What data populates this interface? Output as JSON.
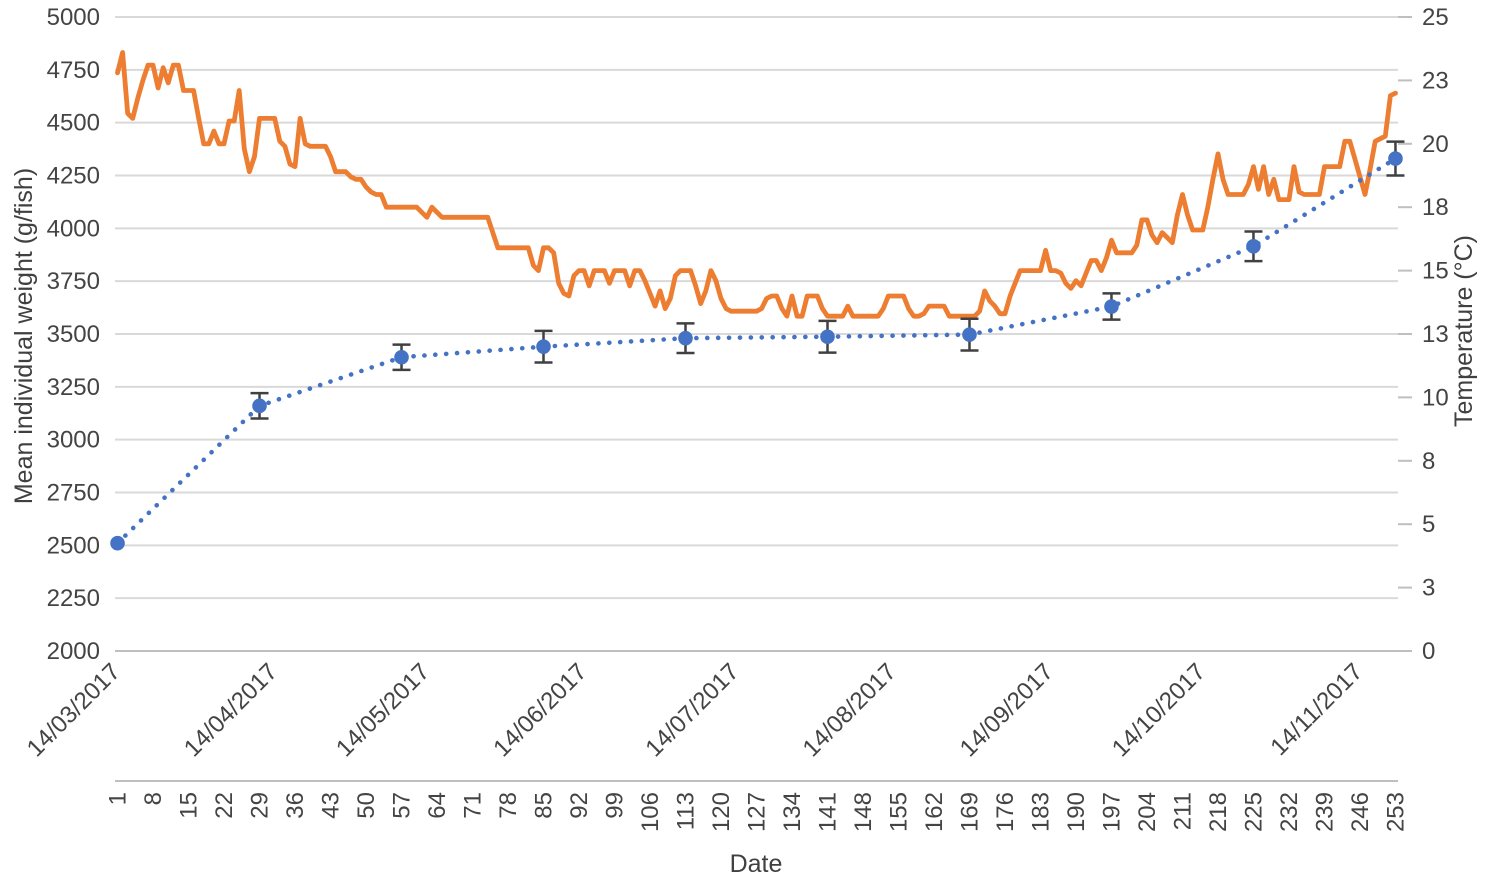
{
  "chart_data": {
    "type": "line",
    "title": "",
    "xlabel": "Date",
    "ylabel_left": "Mean individual weight (g/fish)",
    "ylabel_right": "Temperature (°C)",
    "grid": true,
    "legend": "none",
    "colors": {
      "temperature_line": "#ED7D31",
      "weight_series": "#4472C4",
      "error_bar": "#404040",
      "gridline": "#D9D9D9",
      "axis_line": "#BFBFBF",
      "tick_text": "#444444"
    },
    "y_left_axis": {
      "min": 2000,
      "max": 5000,
      "step": 250,
      "tick_labels": [
        "5000",
        "4750",
        "4500",
        "4250",
        "4000",
        "3750",
        "3500",
        "3250",
        "3000",
        "2750",
        "2500",
        "2250",
        "2000"
      ],
      "tick_values": [
        5000,
        4750,
        4500,
        4250,
        4000,
        3750,
        3500,
        3250,
        3000,
        2750,
        2500,
        2250,
        2000
      ]
    },
    "y_right_axis": {
      "min": 0,
      "max": 25,
      "step": 2.5,
      "tick_labels_bottom_to_top": [
        "0",
        "3",
        "5",
        "8",
        "10",
        "13",
        "15",
        "18",
        "20",
        "23",
        "25"
      ]
    },
    "x_axis": {
      "day_tick_labels": [
        1,
        8,
        15,
        22,
        29,
        36,
        43,
        50,
        57,
        64,
        71,
        78,
        85,
        92,
        99,
        106,
        113,
        120,
        127,
        134,
        141,
        148,
        155,
        162,
        169,
        176,
        183,
        190,
        197,
        204,
        211,
        218,
        225,
        232,
        239,
        246,
        253
      ],
      "date_group_labels": [
        {
          "label": "14/03/2017",
          "start_day": 1
        },
        {
          "label": "14/04/2017",
          "start_day": 32
        },
        {
          "label": "14/05/2017",
          "start_day": 62
        },
        {
          "label": "14/06/2017",
          "start_day": 93
        },
        {
          "label": "14/07/2017",
          "start_day": 123
        },
        {
          "label": "14/08/2017",
          "start_day": 154
        },
        {
          "label": "14/09/2017",
          "start_day": 185
        },
        {
          "label": "14/10/2017",
          "start_day": 215
        },
        {
          "label": "14/11/2017",
          "start_day": 246
        }
      ],
      "total_days": 253
    },
    "series": [
      {
        "name": "temperature",
        "axis": "right",
        "style": "solid",
        "start_day": 1,
        "values": [
          22.8,
          23.6,
          21.2,
          21.0,
          21.8,
          22.5,
          23.1,
          23.1,
          22.2,
          23.0,
          22.4,
          23.1,
          23.1,
          22.1,
          22.1,
          22.1,
          21.0,
          20.0,
          20.0,
          20.5,
          20.0,
          20.0,
          20.9,
          20.9,
          22.1,
          19.8,
          18.9,
          19.5,
          21.0,
          21.0,
          21.0,
          21.0,
          20.1,
          19.9,
          19.2,
          19.1,
          21.0,
          20.0,
          19.9,
          19.9,
          19.9,
          19.9,
          19.5,
          18.9,
          18.9,
          18.9,
          18.7,
          18.6,
          18.6,
          18.3,
          18.1,
          18.0,
          18.0,
          17.5,
          17.5,
          17.5,
          17.5,
          17.5,
          17.5,
          17.5,
          17.3,
          17.1,
          17.5,
          17.3,
          17.1,
          17.1,
          17.1,
          17.1,
          17.1,
          17.1,
          17.1,
          17.1,
          17.1,
          17.1,
          16.5,
          15.9,
          15.9,
          15.9,
          15.9,
          15.9,
          15.9,
          15.9,
          15.2,
          15.0,
          15.9,
          15.9,
          15.7,
          14.5,
          14.1,
          14.0,
          14.8,
          15.0,
          15.0,
          14.4,
          15.0,
          15.0,
          15.0,
          14.5,
          15.0,
          15.0,
          15.0,
          14.4,
          15.0,
          15.0,
          14.6,
          14.1,
          13.6,
          14.2,
          13.5,
          13.9,
          14.8,
          15.0,
          15.0,
          15.0,
          14.4,
          13.7,
          14.2,
          15.0,
          14.6,
          13.9,
          13.5,
          13.4,
          13.4,
          13.4,
          13.4,
          13.4,
          13.4,
          13.5,
          13.9,
          14.0,
          14.0,
          13.5,
          13.2,
          14.0,
          13.2,
          13.2,
          14.0,
          14.0,
          14.0,
          13.5,
          13.2,
          13.2,
          13.2,
          13.2,
          13.6,
          13.2,
          13.2,
          13.2,
          13.2,
          13.2,
          13.2,
          13.5,
          14.0,
          14.0,
          14.0,
          14.0,
          13.5,
          13.2,
          13.2,
          13.3,
          13.6,
          13.6,
          13.6,
          13.6,
          13.2,
          13.2,
          13.2,
          13.2,
          13.2,
          13.2,
          13.4,
          14.2,
          13.8,
          13.6,
          13.3,
          13.3,
          14.0,
          14.5,
          15.0,
          15.0,
          15.0,
          15.0,
          15.0,
          15.8,
          15.0,
          15.0,
          14.9,
          14.5,
          14.3,
          14.6,
          14.4,
          14.9,
          15.4,
          15.4,
          15.0,
          15.5,
          16.2,
          15.7,
          15.7,
          15.7,
          15.7,
          16.0,
          17.0,
          17.0,
          16.4,
          16.1,
          16.5,
          16.3,
          16.1,
          17.2,
          18.0,
          17.2,
          16.6,
          16.6,
          16.6,
          17.5,
          18.6,
          19.6,
          18.6,
          18.0,
          18.0,
          18.0,
          18.0,
          18.4,
          19.1,
          18.2,
          19.1,
          18.0,
          18.6,
          17.8,
          17.8,
          17.8,
          19.1,
          18.1,
          18.0,
          18.0,
          18.0,
          18.0,
          19.1,
          19.1,
          19.1,
          19.1,
          20.1,
          20.1,
          19.4,
          18.7,
          18.0,
          19.0,
          20.1,
          20.2,
          20.3,
          21.9,
          22.0
        ]
      },
      {
        "name": "mean-individual-weight",
        "axis": "left",
        "style": "dotted-with-markers",
        "points": [
          {
            "day": 1,
            "value": 2510,
            "error": 0
          },
          {
            "day": 29,
            "value": 3160,
            "error": 60
          },
          {
            "day": 57,
            "value": 3390,
            "error": 60
          },
          {
            "day": 85,
            "value": 3440,
            "error": 75
          },
          {
            "day": 113,
            "value": 3480,
            "error": 70
          },
          {
            "day": 141,
            "value": 3487,
            "error": 75
          },
          {
            "day": 169,
            "value": 3497,
            "error": 75
          },
          {
            "day": 197,
            "value": 3630,
            "error": 62
          },
          {
            "day": 225,
            "value": 3915,
            "error": 70
          },
          {
            "day": 253,
            "value": 4330,
            "error": 80
          }
        ]
      }
    ]
  }
}
